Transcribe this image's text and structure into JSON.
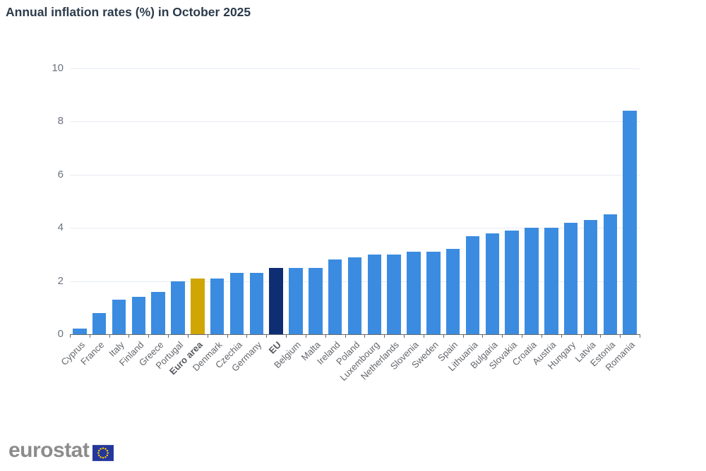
{
  "title": "Annual inflation rates (%) in October 2025",
  "logo": {
    "text": "eurostat",
    "flag": "eu-flag-icon"
  },
  "colors": {
    "bar_country": "#3b8ce1",
    "bar_euro_area": "#cfa604",
    "bar_eu": "#0e2d72",
    "title": "#2c3b4b",
    "gridline": "#e7ebf2",
    "axis_line": "#65696e",
    "y_label": "#6c737e",
    "x_label": "#63666b",
    "logo_text": "#8c8c8c",
    "flag_blue": "#24379c",
    "flag_stars": "#ffcc00"
  },
  "chart_data": {
    "type": "bar",
    "title": "Annual inflation rates (%) in October 2025",
    "xlabel": "",
    "ylabel": "",
    "ylim": [
      0,
      10
    ],
    "yticks": [
      0,
      2,
      4,
      6,
      8,
      10
    ],
    "grid": true,
    "legend": false,
    "categories": [
      "Cyprus",
      "France",
      "Italy",
      "Finland",
      "Greece",
      "Portugal",
      "Euro area",
      "Denmark",
      "Czechia",
      "Germany",
      "EU",
      "Belgium",
      "Malta",
      "Ireland",
      "Poland",
      "Luxembourg",
      "Netherlands",
      "Slovenia",
      "Sweden",
      "Spain",
      "Lithuania",
      "Bulgaria",
      "Slovakia",
      "Croatia",
      "Austria",
      "Hungary",
      "Latvia",
      "Estonia",
      "Romania"
    ],
    "values": [
      0.2,
      0.8,
      1.3,
      1.4,
      1.6,
      2.0,
      2.1,
      2.1,
      2.3,
      2.3,
      2.5,
      2.5,
      2.5,
      2.8,
      2.9,
      3.0,
      3.0,
      3.1,
      3.1,
      3.2,
      3.7,
      3.8,
      3.9,
      4.0,
      4.0,
      4.2,
      4.3,
      4.5,
      8.4
    ],
    "bars": [
      {
        "label": "Cyprus",
        "value": 0.2,
        "kind": "country"
      },
      {
        "label": "France",
        "value": 0.8,
        "kind": "country"
      },
      {
        "label": "Italy",
        "value": 1.3,
        "kind": "country"
      },
      {
        "label": "Finland",
        "value": 1.4,
        "kind": "country"
      },
      {
        "label": "Greece",
        "value": 1.6,
        "kind": "country"
      },
      {
        "label": "Portugal",
        "value": 2.0,
        "kind": "country"
      },
      {
        "label": "Euro area",
        "value": 2.1,
        "kind": "euro-area"
      },
      {
        "label": "Denmark",
        "value": 2.1,
        "kind": "country"
      },
      {
        "label": "Czechia",
        "value": 2.3,
        "kind": "country"
      },
      {
        "label": "Germany",
        "value": 2.3,
        "kind": "country"
      },
      {
        "label": "EU",
        "value": 2.5,
        "kind": "eu"
      },
      {
        "label": "Belgium",
        "value": 2.5,
        "kind": "country"
      },
      {
        "label": "Malta",
        "value": 2.5,
        "kind": "country"
      },
      {
        "label": "Ireland",
        "value": 2.8,
        "kind": "country"
      },
      {
        "label": "Poland",
        "value": 2.9,
        "kind": "country"
      },
      {
        "label": "Luxembourg",
        "value": 3.0,
        "kind": "country"
      },
      {
        "label": "Netherlands",
        "value": 3.0,
        "kind": "country"
      },
      {
        "label": "Slovenia",
        "value": 3.1,
        "kind": "country"
      },
      {
        "label": "Sweden",
        "value": 3.1,
        "kind": "country"
      },
      {
        "label": "Spain",
        "value": 3.2,
        "kind": "country"
      },
      {
        "label": "Lithuania",
        "value": 3.7,
        "kind": "country"
      },
      {
        "label": "Bulgaria",
        "value": 3.8,
        "kind": "country"
      },
      {
        "label": "Slovakia",
        "value": 3.9,
        "kind": "country"
      },
      {
        "label": "Croatia",
        "value": 4.0,
        "kind": "country"
      },
      {
        "label": "Austria",
        "value": 4.0,
        "kind": "country"
      },
      {
        "label": "Hungary",
        "value": 4.2,
        "kind": "country"
      },
      {
        "label": "Latvia",
        "value": 4.3,
        "kind": "country"
      },
      {
        "label": "Estonia",
        "value": 4.5,
        "kind": "country"
      },
      {
        "label": "Romania",
        "value": 8.4,
        "kind": "country"
      }
    ]
  }
}
